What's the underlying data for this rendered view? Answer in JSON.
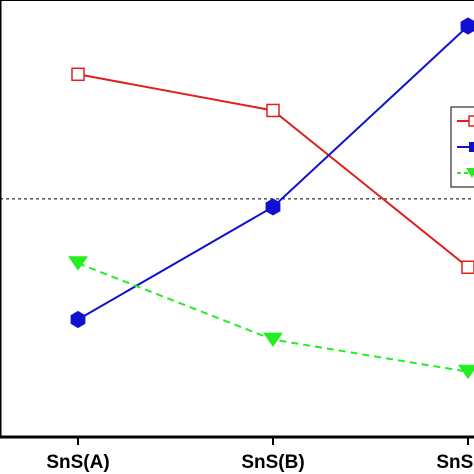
{
  "chart_data": {
    "type": "line",
    "categories": [
      "SnS(A)",
      "SnS(B)",
      "SnS(C)"
    ],
    "ylim": [
      0,
      100
    ],
    "reference_line": {
      "y": 55,
      "style": "dotted",
      "color": "#000000"
    },
    "series": [
      {
        "color": "#e0201c",
        "marker": "open-square",
        "line": "solid",
        "values": [
          86,
          77,
          38
        ]
      },
      {
        "color": "#1010d0",
        "marker": "filled-hexagon",
        "line": "solid",
        "values": [
          25,
          53,
          98
        ]
      },
      {
        "color": "#22ee22",
        "marker": "filled-triangle-down",
        "line": "dashed",
        "values": [
          39,
          20,
          12
        ]
      }
    ],
    "legend": {
      "position": "right",
      "truncated": true
    },
    "grid": false
  }
}
